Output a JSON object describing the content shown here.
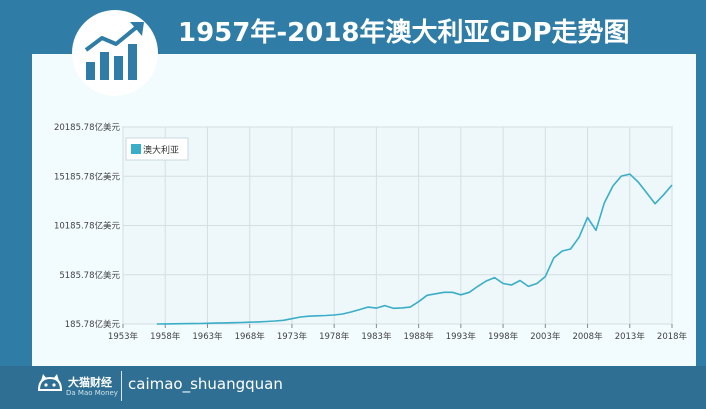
{
  "header": {
    "title": "1957年-2018年澳大利亚GDP走势图"
  },
  "footer": {
    "brand_name": "大猫财经",
    "brand_sub": "Da Mao Money",
    "handle": "caimao_shuangquan"
  },
  "colors": {
    "frame": "#2f7da6",
    "line": "#3aaec8",
    "grid": "#d4dfe4",
    "legend_swatch": "#3aaec8"
  },
  "icons": {
    "logo": "rising-bar-chart-icon",
    "brand": "cat-icon"
  },
  "chart_data": {
    "type": "line",
    "ylim": [
      185.78,
      20185.78
    ],
    "y_ticks": [
      185.78,
      5185.78,
      10185.78,
      15185.78,
      20185.78
    ],
    "y_tick_labels": [
      "185.78亿美元",
      "5185.78亿美元",
      "10185.78亿美元",
      "15185.78亿美元",
      "20185.78亿美元"
    ],
    "xlim": [
      1953,
      2018
    ],
    "x_ticks": [
      1953,
      1958,
      1963,
      1968,
      1973,
      1978,
      1983,
      1988,
      1993,
      1998,
      2003,
      2008,
      2013,
      2018
    ],
    "x_tick_labels": [
      "1953年",
      "1958年",
      "1963年",
      "1968年",
      "1973年",
      "1978年",
      "1983年",
      "1988年",
      "1993年",
      "1998年",
      "2003年",
      "2008年",
      "2013年",
      "2018年"
    ],
    "legend_position": "top-left",
    "grid": true,
    "series": [
      {
        "name": "澳大利亚",
        "x": [
          1957,
          1958,
          1959,
          1960,
          1961,
          1962,
          1963,
          1964,
          1965,
          1966,
          1967,
          1968,
          1969,
          1970,
          1971,
          1972,
          1973,
          1974,
          1975,
          1976,
          1977,
          1978,
          1979,
          1980,
          1981,
          1982,
          1983,
          1984,
          1985,
          1986,
          1987,
          1988,
          1989,
          1990,
          1991,
          1992,
          1993,
          1994,
          1995,
          1996,
          1997,
          1998,
          1999,
          2000,
          2001,
          2002,
          2003,
          2004,
          2005,
          2006,
          2007,
          2008,
          2009,
          2010,
          2011,
          2012,
          2013,
          2014,
          2015,
          2016,
          2017,
          2018
        ],
        "y": [
          186,
          195,
          205,
          215,
          225,
          236,
          255,
          275,
          295,
          315,
          335,
          365,
          400,
          440,
          490,
          560,
          720,
          900,
          980,
          1020,
          1050,
          1100,
          1200,
          1400,
          1650,
          1900,
          1800,
          2050,
          1780,
          1820,
          1900,
          2450,
          3100,
          3250,
          3400,
          3400,
          3150,
          3400,
          4000,
          4550,
          4900,
          4300,
          4150,
          4600,
          4000,
          4300,
          5000,
          6900,
          7600,
          7800,
          9000,
          11000,
          9700,
          12500,
          14200,
          15200,
          15400,
          14600,
          13500,
          12400,
          13300,
          14300
        ]
      }
    ]
  }
}
